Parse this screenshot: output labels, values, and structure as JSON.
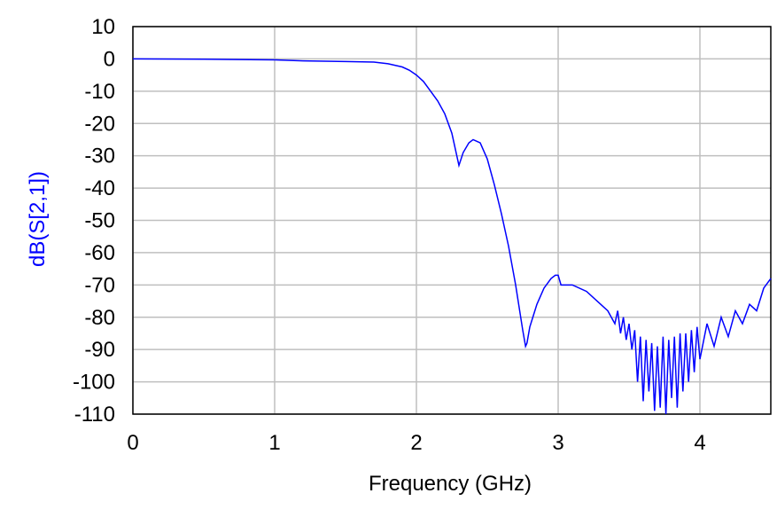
{
  "chart_data": {
    "type": "line",
    "x_label": "Frequency (GHz)",
    "y_label": "dB(S[2,1])",
    "x": [
      0,
      0.5,
      1.0,
      1.2,
      1.5,
      1.7,
      1.8,
      1.9,
      1.95,
      2.0,
      2.05,
      2.1,
      2.15,
      2.2,
      2.25,
      2.3,
      2.33,
      2.37,
      2.4,
      2.45,
      2.5,
      2.55,
      2.6,
      2.65,
      2.7,
      2.75,
      2.77,
      2.78,
      2.8,
      2.85,
      2.9,
      2.95,
      2.98,
      3.0,
      3.02,
      3.1,
      3.2,
      3.3,
      3.35,
      3.4,
      3.42,
      3.44,
      3.46,
      3.48,
      3.5,
      3.52,
      3.54,
      3.56,
      3.58,
      3.6,
      3.62,
      3.64,
      3.66,
      3.68,
      3.7,
      3.72,
      3.74,
      3.76,
      3.78,
      3.8,
      3.82,
      3.84,
      3.86,
      3.88,
      3.9,
      3.92,
      3.94,
      3.96,
      3.98,
      4.0,
      4.05,
      4.1,
      4.15,
      4.2,
      4.25,
      4.3,
      4.35,
      4.4,
      4.45,
      4.5
    ],
    "series": [
      {
        "color": "#0000ff",
        "values": [
          0,
          -0.1,
          -0.3,
          -0.6,
          -0.8,
          -1,
          -1.5,
          -2.5,
          -3.5,
          -5,
          -7,
          -10,
          -13,
          -17,
          -23,
          -33,
          -29,
          -26,
          -25,
          -26,
          -31,
          -39,
          -48,
          -58,
          -70,
          -84,
          -89,
          -88,
          -83,
          -76,
          -71,
          -68,
          -67,
          -67,
          -70,
          -70,
          -72,
          -76,
          -78,
          -82,
          -78,
          -85,
          -80,
          -87,
          -82,
          -90,
          -84,
          -100,
          -86,
          -106,
          -87,
          -103,
          -88,
          -109,
          -89,
          -108,
          -86,
          -110,
          -87,
          -105,
          -86,
          -108,
          -85,
          -103,
          -85,
          -100,
          -84,
          -97,
          -83,
          -93,
          -82,
          -89,
          -80,
          -86,
          -78,
          -82,
          -76,
          -78,
          -71,
          -68
        ]
      }
    ],
    "xlim": [
      0,
      4.5
    ],
    "xticks": [
      0,
      1,
      2,
      3,
      4
    ],
    "ylim": [
      -110,
      10
    ],
    "yticks": [
      10,
      0,
      -10,
      -20,
      -30,
      -40,
      -50,
      -60,
      -70,
      -80,
      -90,
      -100,
      -110
    ],
    "grid": true
  }
}
